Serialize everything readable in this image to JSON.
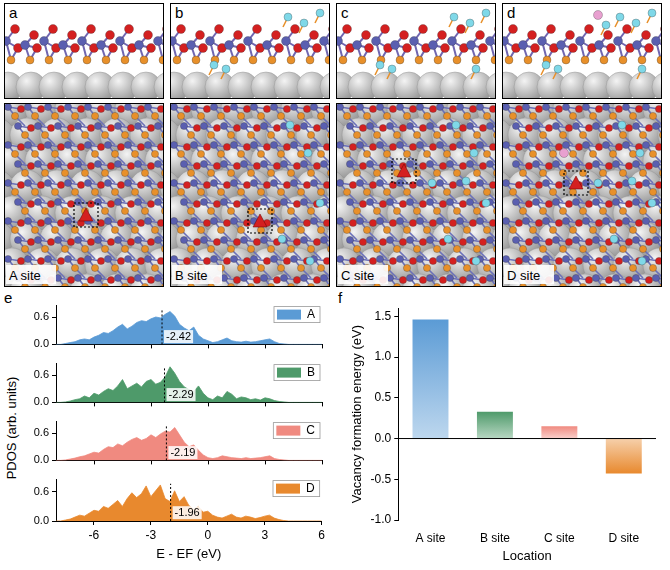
{
  "structures": [
    {
      "panel_label": "a",
      "site": "A site"
    },
    {
      "panel_label": "b",
      "site": "B site"
    },
    {
      "panel_label": "c",
      "site": "C site"
    },
    {
      "panel_label": "d",
      "site": "D site"
    }
  ],
  "chart_data": [
    {
      "panel_label": "e",
      "type": "area",
      "ylabel": "PDOS (arb. units)",
      "xlabel": "E - EF (eV)",
      "x": [
        -8,
        -7.75,
        -7.5,
        -7.25,
        -7,
        -6.75,
        -6.5,
        -6.25,
        -6,
        -5.75,
        -5.5,
        -5.25,
        -5,
        -4.75,
        -4.5,
        -4.25,
        -4,
        -3.75,
        -3.5,
        -3.25,
        -3,
        -2.75,
        -2.5,
        -2.25,
        -2,
        -1.75,
        -1.5,
        -1.25,
        -1,
        -0.75,
        -0.5,
        -0.25,
        0,
        0.25,
        0.5,
        0.75,
        1,
        1.25,
        1.5,
        1.75,
        2,
        2.25,
        2.5,
        2.75,
        3,
        3.25,
        3.5,
        3.75,
        4,
        4.25,
        4.5,
        4.75,
        5,
        5.25,
        5.5,
        5.75,
        6
      ],
      "xlim": [
        -8,
        6
      ],
      "xticks": [
        -6,
        -3,
        0,
        3,
        6
      ],
      "ylim": [
        0,
        0.85
      ],
      "yticks": [
        {
          "value": 0,
          "label": "0.0"
        },
        0.6
      ],
      "grid": false,
      "legend": "top-right",
      "series": [
        {
          "name": "A",
          "color": "#5b9bd5",
          "d_band_center": -2.42,
          "values": [
            0,
            0,
            0.02,
            0.04,
            0.06,
            0.1,
            0.12,
            0.1,
            0.16,
            0.2,
            0.26,
            0.24,
            0.3,
            0.38,
            0.44,
            0.34,
            0.4,
            0.48,
            0.52,
            0.5,
            0.56,
            0.6,
            0.58,
            0.66,
            0.72,
            0.62,
            0.44,
            0.36,
            0.3,
            0.38,
            0.2,
            0.12,
            0.08,
            0.04,
            0.06,
            0.1,
            0.14,
            0.08,
            0.06,
            0.05,
            0.07,
            0.05,
            0.06,
            0.08,
            0.1,
            0.12,
            0.06,
            0.02,
            0.01,
            0,
            0,
            0,
            0,
            0,
            0,
            0,
            0
          ]
        },
        {
          "name": "B",
          "color": "#4e9a6a",
          "d_band_center": -2.29,
          "values": [
            0,
            0,
            0.01,
            0.03,
            0.06,
            0.08,
            0.14,
            0.1,
            0.2,
            0.16,
            0.24,
            0.3,
            0.26,
            0.36,
            0.5,
            0.3,
            0.36,
            0.42,
            0.34,
            0.46,
            0.5,
            0.4,
            0.44,
            0.56,
            0.78,
            0.64,
            0.46,
            0.34,
            0.28,
            0.24,
            0.36,
            0.2,
            0.1,
            0.06,
            0.14,
            0.1,
            0.24,
            0.18,
            0.08,
            0.12,
            0.1,
            0.06,
            0.08,
            0.05,
            0.1,
            0.08,
            0.04,
            0.02,
            0.01,
            0,
            0,
            0,
            0,
            0,
            0,
            0,
            0
          ]
        },
        {
          "name": "C",
          "color": "#f08a80",
          "d_band_center": -2.19,
          "values": [
            0,
            0,
            0.01,
            0.03,
            0.05,
            0.08,
            0.1,
            0.14,
            0.18,
            0.16,
            0.24,
            0.3,
            0.28,
            0.36,
            0.32,
            0.4,
            0.46,
            0.5,
            0.44,
            0.48,
            0.56,
            0.5,
            0.58,
            0.64,
            0.62,
            0.72,
            0.56,
            0.4,
            0.3,
            0.34,
            0.22,
            0.12,
            0.06,
            0.04,
            0.06,
            0.1,
            0.08,
            0.06,
            0.05,
            0.04,
            0.06,
            0.04,
            0.05,
            0.06,
            0.08,
            0.1,
            0.04,
            0.02,
            0.01,
            0,
            0,
            0,
            0,
            0,
            0,
            0,
            0
          ]
        },
        {
          "name": "D",
          "color": "#e8892e",
          "d_band_center": -1.96,
          "values": [
            0,
            0,
            0.02,
            0.04,
            0.08,
            0.12,
            0.1,
            0.16,
            0.22,
            0.2,
            0.3,
            0.26,
            0.34,
            0.42,
            0.3,
            0.46,
            0.58,
            0.48,
            0.56,
            0.72,
            0.5,
            0.62,
            0.74,
            0.46,
            0.4,
            0.62,
            0.4,
            0.5,
            0.32,
            0.24,
            0.3,
            0.18,
            0.2,
            0.12,
            0.08,
            0.06,
            0.1,
            0.14,
            0.08,
            0.06,
            0.1,
            0.08,
            0.05,
            0.07,
            0.1,
            0.12,
            0.06,
            0.03,
            0.01,
            0,
            0,
            0,
            0,
            0,
            0,
            0,
            0
          ]
        }
      ]
    },
    {
      "panel_label": "f",
      "type": "bar",
      "ylabel": "Vacancy formation energy (eV)",
      "xlabel": "Location",
      "categories": [
        "A site",
        "B site",
        "C site",
        "D site"
      ],
      "values": [
        1.46,
        0.33,
        0.15,
        -0.43
      ],
      "colors": [
        "#5b9bd5",
        "#4e9a6a",
        "#f08a80",
        "#e8892e"
      ],
      "ylim": [
        -1,
        1.6
      ],
      "yticks": [
        {
          "value": -1,
          "label": "-1.0"
        },
        -0.5,
        {
          "value": 0,
          "label": "0.0"
        },
        0.5,
        {
          "value": 1,
          "label": "1.0"
        },
        1.5
      ],
      "grid": false
    }
  ]
}
